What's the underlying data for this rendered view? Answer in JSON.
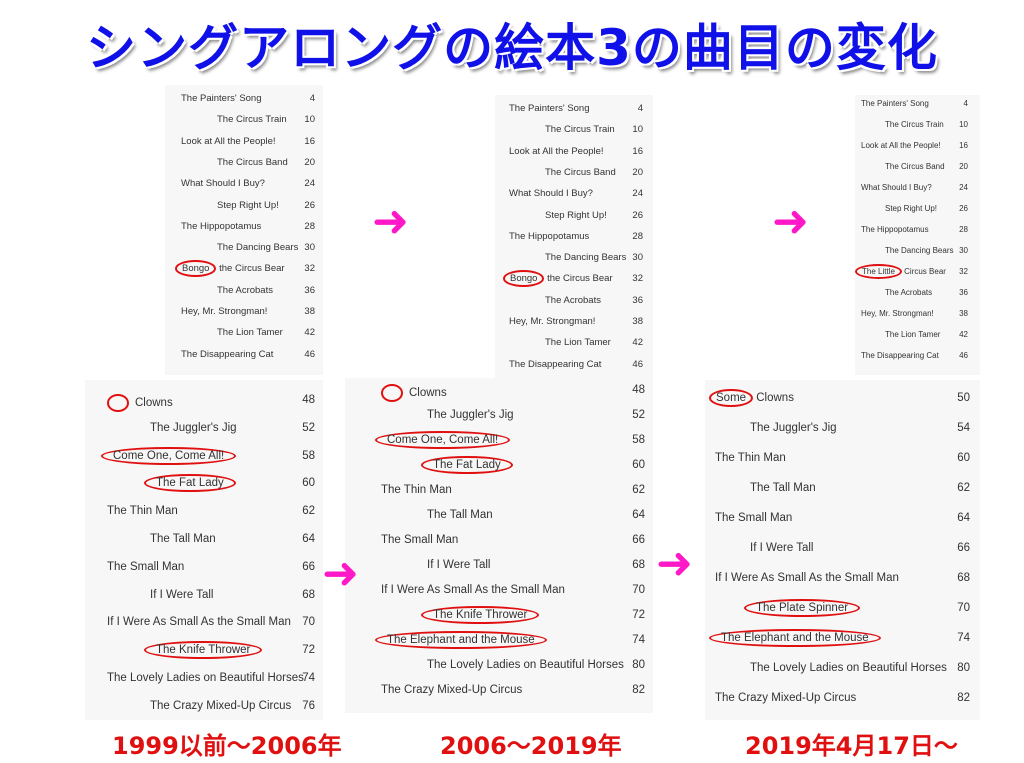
{
  "title": "シングアロングの絵本3の曲目の変化",
  "captions": [
    "1999以前〜2006年",
    "2006〜2019年",
    "2019年4月17日〜"
  ],
  "arrow_color": "#ff18c8",
  "highlight_color": "#e01010",
  "columns": [
    {
      "top": [
        {
          "title": "The Painters' Song",
          "page": "4"
        },
        {
          "title": "The Circus Train",
          "page": "10"
        },
        {
          "title": "Look at All the People!",
          "page": "16"
        },
        {
          "title": "The Circus Band",
          "page": "20"
        },
        {
          "title": "What Should I Buy?",
          "page": "24"
        },
        {
          "title": "Step Right Up!",
          "page": "26"
        },
        {
          "title": "The Hippopotamus",
          "page": "28"
        },
        {
          "title": "The Dancing Bears",
          "page": "30"
        },
        {
          "title": "the Circus Bear",
          "circled_prefix": "Bongo",
          "page": "32"
        },
        {
          "title": "The Acrobats",
          "page": "36"
        },
        {
          "title": "Hey, Mr. Strongman!",
          "page": "38"
        },
        {
          "title": "The Lion Tamer",
          "page": "42"
        },
        {
          "title": "The Disappearing Cat",
          "page": "46"
        }
      ],
      "bottom": [
        {
          "title": "Clowns",
          "blank_circle": true,
          "page": "48"
        },
        {
          "title": "The Juggler's Jig",
          "page": "52"
        },
        {
          "title": "Come One, Come All!",
          "circled": true,
          "page": "58"
        },
        {
          "title": "The Fat Lady",
          "circled": true,
          "page": "60"
        },
        {
          "title": "The Thin Man",
          "page": "62"
        },
        {
          "title": "The Tall Man",
          "page": "64"
        },
        {
          "title": "The Small Man",
          "page": "66"
        },
        {
          "title": "If I Were Tall",
          "page": "68"
        },
        {
          "title": "If I Were As Small As the Small Man",
          "page": "70"
        },
        {
          "title": "The Knife Thrower",
          "circled": true,
          "page": "72"
        },
        {
          "title": "The Lovely Ladies on Beautiful Horses",
          "page": "74"
        },
        {
          "title": "The Crazy Mixed-Up Circus",
          "page": "76"
        }
      ]
    },
    {
      "top": [
        {
          "title": "The Painters' Song",
          "page": "4"
        },
        {
          "title": "The Circus Train",
          "page": "10"
        },
        {
          "title": "Look at All the People!",
          "page": "16"
        },
        {
          "title": "The Circus Band",
          "page": "20"
        },
        {
          "title": "What Should I Buy?",
          "page": "24"
        },
        {
          "title": "Step Right Up!",
          "page": "26"
        },
        {
          "title": "The Hippopotamus",
          "page": "28"
        },
        {
          "title": "The Dancing Bears",
          "page": "30"
        },
        {
          "title": "the Circus Bear",
          "circled_prefix": "Bongo",
          "page": "32"
        },
        {
          "title": "The Acrobats",
          "page": "36"
        },
        {
          "title": "Hey, Mr. Strongman!",
          "page": "38"
        },
        {
          "title": "The Lion Tamer",
          "page": "42"
        },
        {
          "title": "The Disappearing Cat",
          "page": "46"
        }
      ],
      "bottom": [
        {
          "title": "Clowns",
          "blank_circle": true,
          "page": "48"
        },
        {
          "title": "The Juggler's Jig",
          "page": "52"
        },
        {
          "title": "Come One, Come All!",
          "circled": true,
          "page": "58"
        },
        {
          "title": "The Fat Lady",
          "circled": true,
          "page": "60"
        },
        {
          "title": "The Thin Man",
          "page": "62"
        },
        {
          "title": "The Tall Man",
          "page": "64"
        },
        {
          "title": "The Small Man",
          "page": "66"
        },
        {
          "title": "If I Were Tall",
          "page": "68"
        },
        {
          "title": "If I Were As Small As the Small Man",
          "page": "70"
        },
        {
          "title": "The Knife Thrower",
          "circled": true,
          "page": "72"
        },
        {
          "title": "The Elephant and the Mouse",
          "circled": true,
          "page": "74"
        },
        {
          "title": "The Lovely Ladies on Beautiful Horses",
          "page": "80"
        },
        {
          "title": "The Crazy Mixed-Up Circus",
          "page": "82"
        }
      ]
    },
    {
      "top": [
        {
          "title": "The Painters' Song",
          "page": "4"
        },
        {
          "title": "The Circus Train",
          "page": "10"
        },
        {
          "title": "Look at All the People!",
          "page": "16"
        },
        {
          "title": "The Circus Band",
          "page": "20"
        },
        {
          "title": "What Should I Buy?",
          "page": "24"
        },
        {
          "title": "Step Right Up!",
          "page": "26"
        },
        {
          "title": "The Hippopotamus",
          "page": "28"
        },
        {
          "title": "The Dancing Bears",
          "page": "30"
        },
        {
          "title": "Circus Bear",
          "circled_prefix": "The Little",
          "page": "32"
        },
        {
          "title": "The Acrobats",
          "page": "36"
        },
        {
          "title": "Hey, Mr. Strongman!",
          "page": "38"
        },
        {
          "title": "The Lion Tamer",
          "page": "42"
        },
        {
          "title": "The Disappearing Cat",
          "page": "46"
        }
      ],
      "bottom": [
        {
          "title": "Clowns",
          "circled_prefix": "Some",
          "page": "50"
        },
        {
          "title": "The Juggler's Jig",
          "page": "54"
        },
        {
          "title": "The Thin Man",
          "page": "60"
        },
        {
          "title": "The Tall Man",
          "page": "62"
        },
        {
          "title": "The Small Man",
          "page": "64"
        },
        {
          "title": "If I Were Tall",
          "page": "66"
        },
        {
          "title": "If I Were As Small As the Small Man",
          "page": "68"
        },
        {
          "title": "The Plate Spinner",
          "circled": true,
          "page": "70"
        },
        {
          "title": "The Elephant and the Mouse",
          "circled": true,
          "page": "74"
        },
        {
          "title": "The Lovely Ladies on Beautiful Horses",
          "page": "80"
        },
        {
          "title": "The Crazy Mixed-Up Circus",
          "page": "82"
        }
      ]
    }
  ]
}
